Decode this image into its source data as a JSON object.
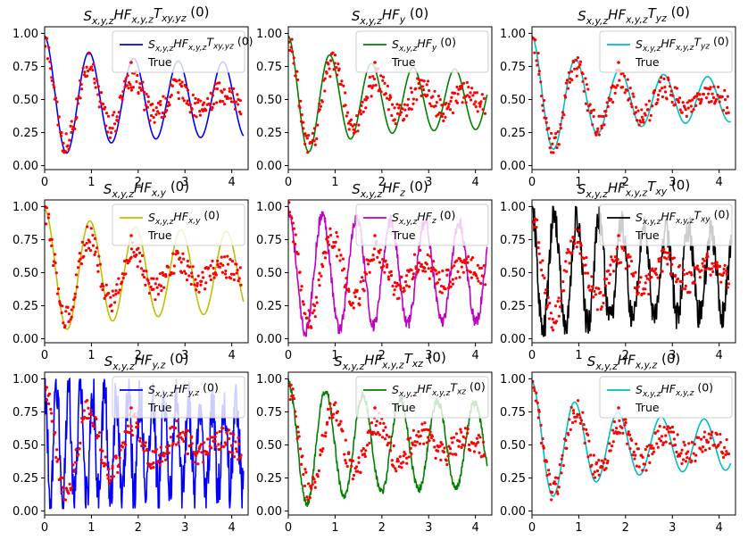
{
  "figure": {
    "background": "#ffffff",
    "marker_color": "#ff0000",
    "legend_true_label": "True"
  },
  "chart_data": [
    {
      "type": "line",
      "title": "S_{x,y,z}HF_{x,y,z}T_{xy,yz} (0)",
      "legend_label": "S_{x,y,z}HF_{x,y,z}T_{xy,yz} (0)",
      "color": "#0000ff",
      "xlim": [
        0,
        4.35
      ],
      "ylim": [
        -0.03,
        1.05
      ],
      "xticks": [
        0,
        1,
        2,
        3,
        4
      ],
      "xtick_labels": [
        "0",
        "1",
        "2",
        "3",
        "4"
      ],
      "yticks": [
        0,
        0.25,
        0.5,
        0.75,
        1.0
      ],
      "ytick_labels": [
        "0.00",
        "0.25",
        "0.50",
        "0.75",
        "1.00"
      ],
      "model": {
        "freq": 5.0,
        "decay": 1.0,
        "tail_amp": 0.28,
        "phase": 0.0,
        "jitter": 0.0
      }
    },
    {
      "type": "line",
      "title": "S_{x,y,z}HF_y (0)",
      "legend_label": "S_{x,y,z}HF_y (0)",
      "color": "#008000",
      "xlim": [
        0,
        4.35
      ],
      "ylim": [
        -0.03,
        1.05
      ],
      "xticks": [
        0,
        1,
        2,
        3,
        4
      ],
      "xtick_labels": [
        "0",
        "1",
        "2",
        "3",
        "4"
      ],
      "yticks": [
        0,
        0.25,
        0.5,
        0.75,
        1.0
      ],
      "ytick_labels": [
        "0.00",
        "0.25",
        "0.50",
        "0.75",
        "1.00"
      ],
      "model": {
        "freq": 5.2,
        "decay": 0.9,
        "tail_amp": 0.22,
        "phase": 0.1,
        "jitter": 0.0
      }
    },
    {
      "type": "line",
      "title": "S_{x,y,z}HF_{x,y,z}T_{yz} (0)",
      "legend_label": "S_{x,y,z}HF_{x,y,z}T_{yz} (0)",
      "color": "#00bfbf",
      "xlim": [
        0,
        4.35
      ],
      "ylim": [
        -0.03,
        1.05
      ],
      "xticks": [
        0,
        1,
        2,
        3,
        4
      ],
      "xtick_labels": [
        "0",
        "1",
        "2",
        "3",
        "4"
      ],
      "yticks": [
        0,
        0.25,
        0.5,
        0.75,
        1.0
      ],
      "ytick_labels": [
        "0.00",
        "0.25",
        "0.50",
        "0.75",
        "1.00"
      ],
      "model": {
        "freq": 5.0,
        "decay": 0.85,
        "tail_amp": 0.16,
        "phase": 0.05,
        "jitter": 0.0
      }
    },
    {
      "type": "line",
      "title": "S_{x,y,z}HF_{x,y} (0)",
      "legend_label": "S_{x,y,z}HF_{x,y} (0)",
      "color": "#bfbf00",
      "xlim": [
        0,
        4.35
      ],
      "ylim": [
        -0.03,
        1.05
      ],
      "xticks": [
        0,
        1,
        2,
        3,
        4
      ],
      "xtick_labels": [
        "0",
        "1",
        "2",
        "3",
        "4"
      ],
      "yticks": [
        0,
        0.25,
        0.5,
        0.75,
        1.0
      ],
      "ytick_labels": [
        "0.00",
        "0.25",
        "0.50",
        "0.75",
        "1.00"
      ],
      "model": {
        "freq": 4.6,
        "decay": 0.7,
        "tail_amp": 0.3,
        "phase": 0.2,
        "jitter": 0.0
      }
    },
    {
      "type": "line",
      "title": "S_{x,y,z}HF_z (0)",
      "legend_label": "S_{x,y,z}HF_z (0)",
      "color": "#bf00bf",
      "xlim": [
        0,
        4.35
      ],
      "ylim": [
        -0.03,
        1.05
      ],
      "xticks": [
        0,
        1,
        2,
        3,
        4
      ],
      "xtick_labels": [
        "0",
        "1",
        "2",
        "3",
        "4"
      ],
      "yticks": [
        0,
        0.25,
        0.5,
        0.75,
        1.0
      ],
      "ytick_labels": [
        "0.00",
        "0.25",
        "0.50",
        "0.75",
        "1.00"
      ],
      "model": {
        "freq": 6.3,
        "decay": 0.6,
        "tail_amp": 0.36,
        "phase": 0.15,
        "jitter": 0.05
      }
    },
    {
      "type": "line",
      "title": "S_{x,y,z}HF_{x,y,z}T_{xy} (0)",
      "legend_label": "S_{x,y,z}HF_{x,y,z}T_{xy} (0)",
      "color": "#000000",
      "xlim": [
        0,
        4.35
      ],
      "ylim": [
        -0.03,
        1.05
      ],
      "xticks": [
        0,
        1,
        2,
        3,
        4
      ],
      "xtick_labels": [
        "0",
        "1",
        "2",
        "3",
        "4"
      ],
      "yticks": [
        0,
        0.25,
        0.5,
        0.75,
        1.0
      ],
      "ytick_labels": [
        "0.00",
        "0.25",
        "0.50",
        "0.75",
        "1.00"
      ],
      "model": {
        "freq": 9.5,
        "decay": 0.5,
        "tail_amp": 0.3,
        "phase": 0.3,
        "jitter": 0.12
      }
    },
    {
      "type": "line",
      "title": "S_{x,y,z}HF_{y,z} (0)",
      "legend_label": "S_{x,y,z}HF_{y,z} (0)",
      "color": "#0000ff",
      "xlim": [
        0,
        4.35
      ],
      "ylim": [
        -0.03,
        1.05
      ],
      "xticks": [
        0,
        1,
        2,
        3,
        4
      ],
      "xtick_labels": [
        "0",
        "1",
        "2",
        "3",
        "4"
      ],
      "yticks": [
        0,
        0.25,
        0.5,
        0.75,
        1.0
      ],
      "ytick_labels": [
        "0.00",
        "0.25",
        "0.50",
        "0.75",
        "1.00"
      ],
      "model": {
        "freq": 18.0,
        "decay": 0.3,
        "tail_amp": 0.25,
        "phase": 0.4,
        "jitter": 0.2
      }
    },
    {
      "type": "line",
      "title": "S_{x,y,z}HF_{x,y,z}T_{xz} (0)",
      "legend_label": "S_{x,y,z}HF_{x,y,z}T_{xz} (0)",
      "color": "#008000",
      "xlim": [
        0,
        4.35
      ],
      "ylim": [
        -0.03,
        1.05
      ],
      "xticks": [
        0,
        1,
        2,
        3,
        4
      ],
      "xtick_labels": [
        "0",
        "1",
        "2",
        "3",
        "4"
      ],
      "yticks": [
        0,
        0.25,
        0.5,
        0.75,
        1.0
      ],
      "ytick_labels": [
        "0.00",
        "0.25",
        "0.50",
        "0.75",
        "1.00"
      ],
      "model": {
        "freq": 5.6,
        "decay": 0.55,
        "tail_amp": 0.3,
        "phase": 0.25,
        "jitter": 0.03
      }
    },
    {
      "type": "line",
      "title": "S_{x,y,z}HF_{x,y,z} (0)",
      "legend_label": "S_{x,y,z}HF_{x,y,z} (0)",
      "color": "#00bfbf",
      "xlim": [
        0,
        4.35
      ],
      "ylim": [
        -0.03,
        1.05
      ],
      "xticks": [
        0,
        1,
        2,
        3,
        4
      ],
      "xtick_labels": [
        "0",
        "1",
        "2",
        "3",
        "4"
      ],
      "yticks": [
        0,
        0.25,
        0.5,
        0.75,
        1.0
      ],
      "ytick_labels": [
        "0.00",
        "0.25",
        "0.50",
        "0.75",
        "1.00"
      ],
      "model": {
        "freq": 5.1,
        "decay": 0.8,
        "tail_amp": 0.18,
        "phase": 0.05,
        "jitter": 0.0
      }
    }
  ]
}
